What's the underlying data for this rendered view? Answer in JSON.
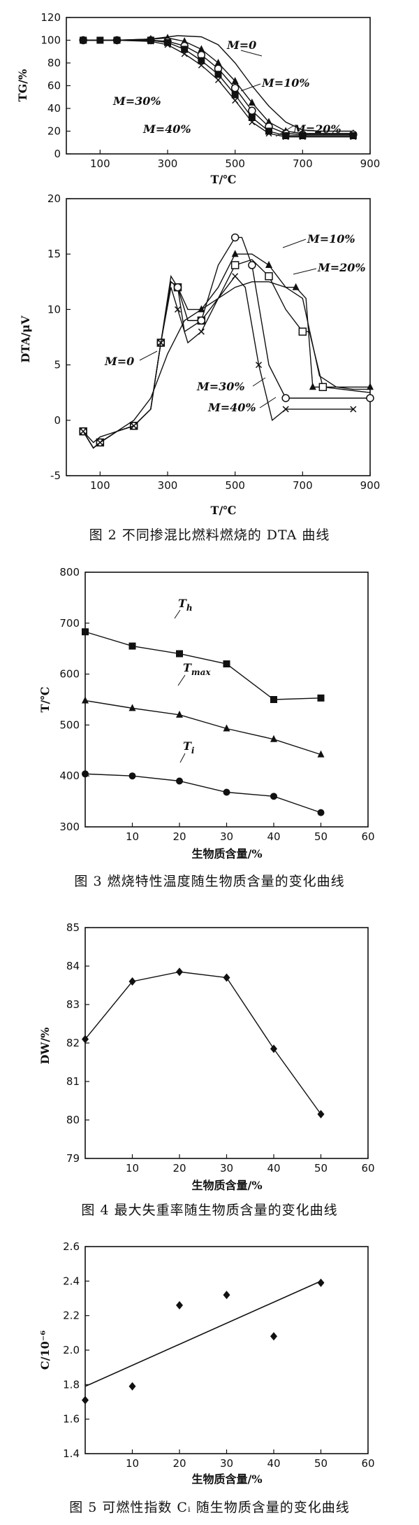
{
  "chart_data": [
    {
      "type": "line",
      "figure": "TG",
      "xlabel": "T/℃",
      "ylabel": "TG/%",
      "xlim": [
        0,
        900
      ],
      "ylim": [
        0,
        120
      ],
      "xticks": [
        100,
        300,
        500,
        700,
        900
      ],
      "yticks": [
        0,
        20,
        40,
        60,
        80,
        100,
        120
      ],
      "grid": false,
      "annotations": [
        "M=0",
        "M=10%",
        "M=20%",
        "M=30%",
        "M=40%"
      ],
      "series": [
        {
          "name": "M=0",
          "x": [
            50,
            150,
            250,
            330,
            400,
            450,
            500,
            550,
            600,
            650,
            700,
            750,
            850
          ],
          "y": [
            100,
            100,
            101,
            104,
            103,
            96,
            80,
            60,
            42,
            28,
            21,
            20,
            20
          ]
        },
        {
          "name": "M=10%",
          "x": [
            50,
            150,
            250,
            300,
            350,
            400,
            450,
            500,
            550,
            600,
            650,
            700,
            850
          ],
          "y": [
            100,
            100,
            101,
            102,
            99,
            92,
            80,
            64,
            45,
            28,
            20,
            18,
            18
          ]
        },
        {
          "name": "M=20%",
          "x": [
            50,
            150,
            250,
            300,
            350,
            400,
            450,
            500,
            550,
            600,
            650,
            700,
            850
          ],
          "y": [
            100,
            100,
            100,
            99,
            95,
            87,
            75,
            58,
            38,
            24,
            18,
            17,
            17
          ]
        },
        {
          "name": "M=30%",
          "x": [
            50,
            150,
            250,
            300,
            350,
            400,
            450,
            500,
            550,
            600,
            650,
            700,
            850
          ],
          "y": [
            100,
            100,
            100,
            98,
            92,
            82,
            70,
            52,
            32,
            20,
            16,
            16,
            16
          ]
        },
        {
          "name": "M=40%",
          "x": [
            50,
            150,
            250,
            300,
            350,
            400,
            450,
            500,
            550,
            600,
            650,
            700,
            850
          ],
          "y": [
            100,
            100,
            99,
            96,
            88,
            78,
            65,
            47,
            28,
            18,
            15,
            15,
            15
          ]
        }
      ]
    },
    {
      "type": "line",
      "figure": "DTA",
      "xlabel": "T/℃",
      "ylabel": "DTA/μV",
      "xlim": [
        0,
        900
      ],
      "ylim": [
        -5,
        20
      ],
      "xticks": [
        100,
        300,
        500,
        700,
        900
      ],
      "yticks": [
        -5,
        0,
        5,
        10,
        15,
        20
      ],
      "grid": false,
      "annotations": [
        "M=10%",
        "M=20%",
        "M=0",
        "M=30%",
        "M=40%"
      ],
      "series": [
        {
          "name": "M=0",
          "x": [
            50,
            80,
            100,
            150,
            200,
            250,
            300,
            350,
            400,
            450,
            500,
            550,
            600,
            650,
            700,
            750,
            800,
            850,
            900
          ],
          "y": [
            -1,
            -2,
            -1.5,
            -1,
            0,
            2,
            6,
            9,
            10,
            11,
            12,
            12.5,
            12.5,
            12,
            11,
            4,
            3,
            2.8,
            2.8
          ]
        },
        {
          "name": "M=10%",
          "x": [
            50,
            80,
            100,
            150,
            200,
            250,
            280,
            310,
            330,
            360,
            400,
            450,
            500,
            550,
            600,
            650,
            680,
            710,
            730,
            800,
            900
          ],
          "y": [
            -1,
            -2.5,
            -2,
            -1,
            -0.5,
            1,
            7,
            12.5,
            12,
            10,
            10,
            12,
            15,
            15,
            14,
            12,
            12,
            11,
            3,
            3,
            3
          ]
        },
        {
          "name": "M=20%",
          "x": [
            50,
            80,
            100,
            150,
            200,
            250,
            280,
            310,
            330,
            360,
            400,
            450,
            500,
            550,
            600,
            650,
            700,
            720,
            760,
            900
          ],
          "y": [
            -1,
            -2.5,
            -2,
            -1,
            -0.5,
            1,
            7,
            12.5,
            12,
            9,
            9,
            11,
            14,
            14.5,
            13,
            10,
            8,
            8,
            3,
            2.5
          ]
        },
        {
          "name": "M=30%",
          "x": [
            50,
            80,
            100,
            150,
            200,
            250,
            280,
            310,
            330,
            350,
            400,
            450,
            500,
            520,
            550,
            600,
            650,
            700,
            900
          ],
          "y": [
            -1,
            -2.5,
            -2,
            -1,
            -0.5,
            1,
            7,
            13,
            12,
            8,
            9,
            14,
            16.5,
            16.5,
            14,
            5,
            2,
            2,
            2
          ]
        },
        {
          "name": "M=40%",
          "x": [
            50,
            80,
            100,
            150,
            200,
            250,
            280,
            310,
            330,
            360,
            400,
            450,
            500,
            530,
            570,
            610,
            650,
            700,
            850
          ],
          "y": [
            -1,
            -2.5,
            -2,
            -1,
            -0.5,
            1,
            7,
            12,
            10,
            7,
            8,
            11,
            13,
            12,
            5,
            0,
            1,
            1,
            1
          ]
        }
      ]
    },
    {
      "type": "line",
      "figure": "3",
      "xlabel": "生物质含量/%",
      "ylabel": "T/℃",
      "xlim": [
        0,
        60
      ],
      "ylim": [
        300,
        800
      ],
      "xticks": [
        10,
        20,
        30,
        40,
        50,
        60
      ],
      "yticks": [
        300,
        400,
        500,
        600,
        700,
        800
      ],
      "grid": false,
      "series": [
        {
          "name": "Th",
          "label_main": "T",
          "label_sub": "h",
          "x": [
            0,
            10,
            20,
            30,
            40,
            50
          ],
          "y": [
            683,
            655,
            640,
            620,
            550,
            553
          ]
        },
        {
          "name": "Tmax",
          "label_main": "T",
          "label_sub": "max",
          "x": [
            0,
            10,
            20,
            30,
            40,
            50
          ],
          "y": [
            548,
            533,
            520,
            493,
            472,
            442
          ]
        },
        {
          "name": "Ti",
          "label_main": "T",
          "label_sub": "i",
          "x": [
            0,
            10,
            20,
            30,
            40,
            50
          ],
          "y": [
            404,
            400,
            390,
            368,
            360,
            328
          ]
        }
      ]
    },
    {
      "type": "line",
      "figure": "4",
      "xlabel": "生物质含量/%",
      "ylabel": "DW/%",
      "xlim": [
        0,
        60
      ],
      "ylim": [
        79,
        85
      ],
      "xticks": [
        10,
        20,
        30,
        40,
        50,
        60
      ],
      "yticks": [
        79,
        80,
        81,
        82,
        83,
        84,
        85
      ],
      "grid": false,
      "series": [
        {
          "x": [
            0,
            10,
            20,
            30,
            40,
            50
          ],
          "y": [
            82.1,
            83.6,
            83.85,
            83.7,
            81.85,
            80.15
          ]
        }
      ]
    },
    {
      "type": "scatter",
      "figure": "5",
      "xlabel": "生物质含量/%",
      "ylabel": "C/10⁻⁶",
      "xlim": [
        0,
        60
      ],
      "ylim": [
        1.4,
        2.6
      ],
      "xticks": [
        10,
        20,
        30,
        40,
        50,
        60
      ],
      "yticks": [
        1.4,
        1.6,
        1.8,
        2.0,
        2.2,
        2.4,
        2.6
      ],
      "grid": false,
      "series": [
        {
          "x": [
            0,
            10,
            20,
            30,
            40,
            50
          ],
          "y": [
            1.71,
            1.79,
            2.26,
            2.32,
            2.08,
            2.39
          ]
        }
      ],
      "fit_line": {
        "x": [
          0,
          50
        ],
        "y": [
          1.79,
          2.4
        ]
      }
    }
  ],
  "captions": {
    "fig2": "图 2 不同掺混比燃料燃烧的 DTA 曲线",
    "fig3": "图 3 燃烧特性温度随生物质含量的变化曲线",
    "fig4": "图 4 最大失重率随生物质含量的变化曲线",
    "fig5": "图 5 可燃性指数 Cᵢ 随生物质含量的变化曲线"
  }
}
